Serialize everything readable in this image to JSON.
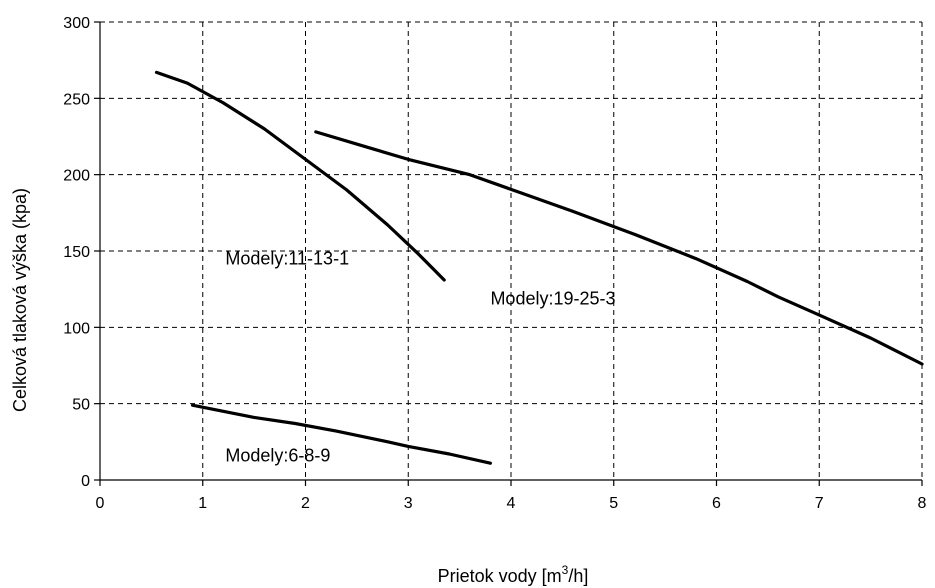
{
  "chart_data": {
    "type": "line",
    "ylabel": "Celková tlaková výška (kpa)",
    "xlabel_parts": [
      "Prietok vody [m",
      "3",
      "/h]"
    ],
    "xlim": [
      0,
      8
    ],
    "ylim": [
      0,
      300
    ],
    "x_ticks": [
      "0",
      "1",
      "2",
      "3",
      "4",
      "5",
      "6",
      "7",
      "8"
    ],
    "y_ticks": [
      "0",
      "50",
      "100",
      "150",
      "200",
      "250",
      "300"
    ],
    "grid": true,
    "series": [
      {
        "name": "Modely:11-13-1",
        "x": [
          0.55,
          0.85,
          1.2,
          1.6,
          2.0,
          2.4,
          2.8,
          3.1,
          3.35
        ],
        "y": [
          267,
          260,
          247,
          230,
          210,
          190,
          167,
          148,
          131
        ]
      },
      {
        "name": "Modely:19-25-3",
        "x": [
          2.1,
          2.6,
          3.0,
          3.6,
          4.1,
          4.6,
          5.2,
          5.8,
          6.3,
          6.6,
          7.0,
          7.5,
          8.0
        ],
        "y": [
          228,
          218,
          210,
          200,
          188,
          176,
          161,
          145,
          130,
          120,
          108,
          93,
          76
        ]
      },
      {
        "name": "Modely:6-8-9",
        "x": [
          0.9,
          1.2,
          1.5,
          1.9,
          2.3,
          2.8,
          3.0,
          3.4,
          3.8
        ],
        "y": [
          49,
          45,
          41,
          37,
          32,
          25,
          22,
          17,
          11
        ]
      }
    ]
  }
}
